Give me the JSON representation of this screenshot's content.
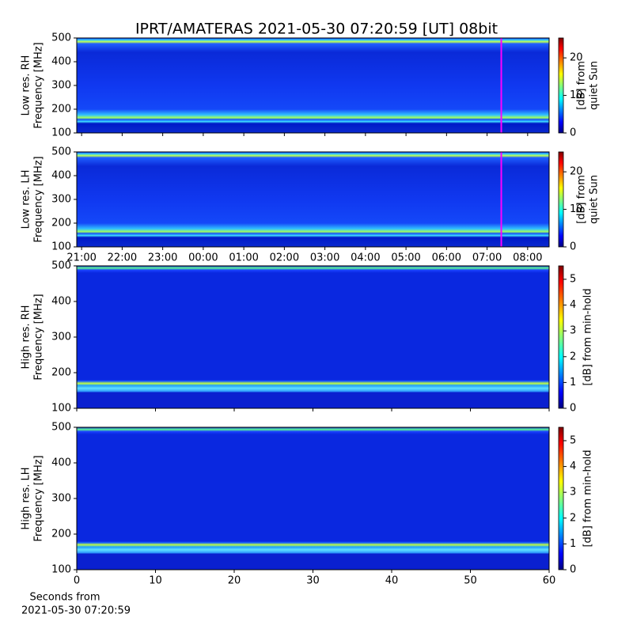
{
  "title": "IPRT/AMATERAS 2021-05-30 07:20:59 [UT]   08bit",
  "chart_data": [
    {
      "type": "heatmap",
      "ylabel": [
        "Low res. RH",
        "Frequency [MHz]"
      ],
      "xlim": [
        -3.12,
        8.53
      ],
      "xticks": [
        -3,
        -2,
        -1,
        0,
        1,
        2,
        3,
        4,
        5,
        6,
        7,
        8
      ],
      "xticklabels": false,
      "ylim": [
        100,
        500
      ],
      "yticks": [
        100,
        200,
        300,
        400,
        500
      ],
      "colorbar": {
        "label": [
          "[dB] from",
          "quiet Sun"
        ],
        "lim": [
          0,
          25.3
        ],
        "ticks": [
          0,
          10,
          20
        ]
      },
      "marker": {
        "x": 7.35,
        "color": "#ff00ff"
      }
    },
    {
      "type": "heatmap",
      "ylabel": [
        "Low res. LH",
        "Frequency [MHz]"
      ],
      "xlim": [
        -3.12,
        8.53
      ],
      "xticks": [
        {
          "value": -3,
          "label": "21:00"
        },
        {
          "value": -2,
          "label": "22:00"
        },
        {
          "value": -1,
          "label": "23:00"
        },
        {
          "value": 0,
          "label": "00:00"
        },
        {
          "value": 1,
          "label": "01:00"
        },
        {
          "value": 2,
          "label": "02:00"
        },
        {
          "value": 3,
          "label": "03:00"
        },
        {
          "value": 4,
          "label": "04:00"
        },
        {
          "value": 5,
          "label": "05:00"
        },
        {
          "value": 6,
          "label": "06:00"
        },
        {
          "value": 7,
          "label": "07:00"
        },
        {
          "value": 8,
          "label": "08:00"
        }
      ],
      "ylim": [
        100,
        500
      ],
      "yticks": [
        100,
        200,
        300,
        400,
        500
      ],
      "colorbar": {
        "label": [
          "[dB] from",
          "quiet Sun"
        ],
        "lim": [
          0,
          25.3
        ],
        "ticks": [
          0,
          10,
          20
        ]
      },
      "marker": {
        "x": 7.35,
        "color": "#ff00ff"
      }
    },
    {
      "type": "heatmap",
      "ylabel": [
        "High res. RH",
        "Frequency [MHz]"
      ],
      "xlim": [
        0,
        60
      ],
      "xticks": [
        0,
        10,
        20,
        30,
        40,
        50,
        60
      ],
      "xticklabels": false,
      "ylim": [
        100,
        500
      ],
      "yticks": [
        100,
        200,
        300,
        400,
        500
      ],
      "colorbar": {
        "label": [
          "[dB] from min-hold"
        ],
        "lim": [
          0,
          5.52
        ],
        "ticks": [
          0,
          1,
          2,
          3,
          4,
          5
        ]
      }
    },
    {
      "type": "heatmap",
      "ylabel": [
        "High res. LH",
        "Frequency [MHz]"
      ],
      "xlabel": [
        "Seconds from",
        "2021-05-30 07:20:59"
      ],
      "xlim": [
        0,
        60
      ],
      "xticks": [
        0,
        10,
        20,
        30,
        40,
        50,
        60
      ],
      "ylim": [
        100,
        500
      ],
      "yticks": [
        100,
        200,
        300,
        400,
        500
      ],
      "colorbar": {
        "label": [
          "[dB] from min-hold"
        ],
        "lim": [
          0,
          5.52
        ],
        "ticks": [
          0,
          1,
          2,
          3,
          4,
          5
        ]
      }
    }
  ]
}
